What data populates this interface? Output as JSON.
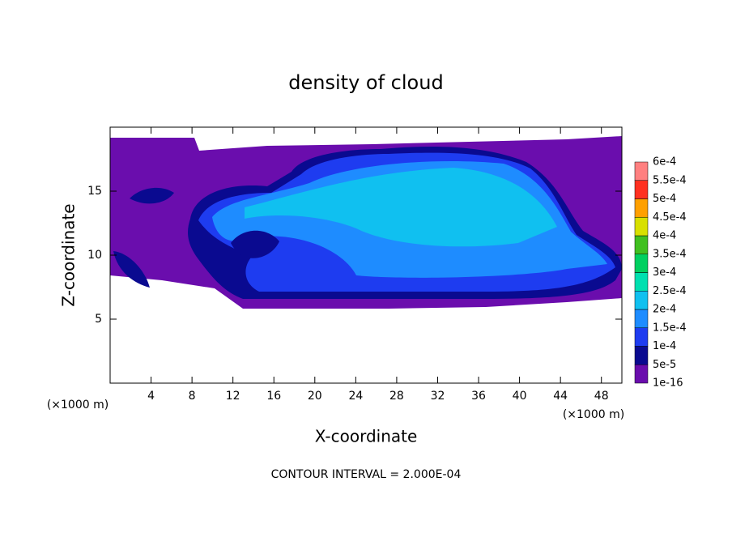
{
  "chart_data": {
    "type": "contour",
    "title": "density of cloud",
    "x_label": "X-coordinate",
    "y_label": "Z-coordinate",
    "x_unit": "(×1000 m)",
    "y_unit": "(×1000 m)",
    "footer": "CONTOUR INTERVAL = 2.000E-04",
    "xlim": [
      0,
      50
    ],
    "ylim": [
      0,
      20
    ],
    "xticks": [
      4,
      8,
      12,
      16,
      20,
      24,
      28,
      32,
      36,
      40,
      44,
      48
    ],
    "yticks": [
      5,
      10,
      15
    ],
    "colorbar": {
      "levels": [
        {
          "value": 1e-16,
          "label": "1e-16"
        },
        {
          "value": 5e-05,
          "label": "5e-5"
        },
        {
          "value": 0.0001,
          "label": "1e-4"
        },
        {
          "value": 0.00015,
          "label": "1.5e-4"
        },
        {
          "value": 0.0002,
          "label": "2e-4"
        },
        {
          "value": 0.00025,
          "label": "2.5e-4"
        },
        {
          "value": 0.0003,
          "label": "3e-4"
        },
        {
          "value": 0.00035,
          "label": "3.5e-4"
        },
        {
          "value": 0.0004,
          "label": "4e-4"
        },
        {
          "value": 0.00045,
          "label": "4.5e-4"
        },
        {
          "value": 0.0005,
          "label": "5e-4"
        },
        {
          "value": 0.00055,
          "label": "5.5e-4"
        },
        {
          "value": 0.0006,
          "label": "6e-4"
        }
      ],
      "colors": [
        "#6a0dad",
        "#0a0a90",
        "#1e3cf0",
        "#1e8cff",
        "#10c0f0",
        "#00e0b0",
        "#00d060",
        "#40c020",
        "#d8e000",
        "#ffa000",
        "#ff3020",
        "#ff8080"
      ]
    }
  }
}
